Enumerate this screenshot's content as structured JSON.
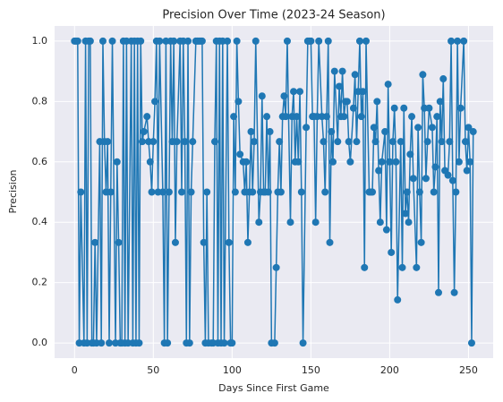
{
  "chart_data": {
    "type": "line",
    "title": "Precision Over Time (2023-24 Season)",
    "x_label": "Days Since First Game",
    "y_label": "Precision",
    "x": [
      0,
      1,
      2,
      3,
      4,
      6,
      7,
      8,
      9,
      10,
      11,
      12,
      13,
      14,
      16,
      17,
      18,
      19,
      20,
      21,
      22,
      23,
      24,
      26,
      27,
      28,
      29,
      30,
      31,
      32,
      33,
      34,
      36,
      37,
      38,
      39,
      40,
      41,
      42,
      43,
      44,
      46,
      47,
      48,
      49,
      50,
      51,
      52,
      53,
      54,
      56,
      57,
      58,
      59,
      60,
      61,
      62,
      63,
      64,
      65,
      67,
      68,
      69,
      70,
      71,
      72,
      73,
      74,
      75,
      77,
      78,
      79,
      80,
      81,
      82,
      83,
      84,
      85,
      87,
      88,
      89,
      90,
      91,
      92,
      93,
      94,
      95,
      97,
      98,
      99,
      100,
      101,
      102,
      103,
      104,
      105,
      107,
      108,
      109,
      110,
      111,
      112,
      113,
      114,
      115,
      117,
      118,
      119,
      120,
      121,
      122,
      123,
      124,
      125,
      127,
      128,
      129,
      130,
      131,
      132,
      133,
      134,
      135,
      137,
      138,
      139,
      140,
      141,
      142,
      143,
      144,
      145,
      147,
      148,
      149,
      150,
      151,
      152,
      153,
      154,
      155,
      157,
      158,
      159,
      160,
      161,
      162,
      163,
      164,
      165,
      167,
      168,
      169,
      170,
      171,
      172,
      173,
      174,
      175,
      177,
      178,
      179,
      180,
      181,
      182,
      183,
      184,
      185,
      187,
      188,
      189,
      190,
      191,
      192,
      193,
      194,
      195,
      197,
      198,
      199,
      200,
      201,
      202,
      203,
      204,
      205,
      207,
      208,
      209,
      210,
      211,
      212,
      213,
      214,
      215,
      217,
      218,
      219,
      220,
      221,
      222,
      223,
      224,
      225,
      227,
      228,
      229,
      230,
      231,
      232,
      233,
      234,
      235,
      237,
      238,
      239,
      240,
      241,
      242,
      243,
      244,
      245,
      247,
      248,
      249,
      250,
      251,
      252,
      253
    ],
    "series": [
      {
        "name": "Precision",
        "color": "#1f77b4",
        "values": [
          1,
          1,
          1,
          0,
          0.5,
          0,
          1,
          0,
          1,
          1,
          0,
          0,
          0.333,
          0,
          0.667,
          0,
          1,
          0.667,
          0.5,
          0.667,
          0,
          0.5,
          1,
          0,
          0.6,
          0.333,
          0,
          0,
          1,
          0,
          1,
          0,
          1,
          0,
          1,
          0,
          1,
          0,
          1,
          0.667,
          0.7,
          0.75,
          0.667,
          0.6,
          0.5,
          0.667,
          0.8,
          1,
          0.5,
          1,
          0.5,
          0,
          1,
          0,
          0.5,
          1,
          0.667,
          1,
          0.333,
          0.667,
          1,
          0.5,
          1,
          0.667,
          0,
          1,
          0,
          0.5,
          0.667,
          1,
          1,
          1,
          1,
          1,
          0.333,
          0,
          0.5,
          0,
          0,
          0,
          0.667,
          1,
          0,
          1,
          0,
          1,
          0,
          1,
          0.333,
          0,
          0,
          0.75,
          0.5,
          1,
          0.8,
          0.625,
          0.6,
          0.5,
          0.6,
          0.333,
          0.5,
          0.7,
          0.5,
          0.667,
          1,
          0.4,
          0.5,
          0.818,
          0.5,
          0.5,
          0.75,
          0.5,
          0.7,
          0,
          0,
          0.25,
          0.5,
          0.667,
          0.5,
          0.75,
          0.818,
          0.75,
          1,
          0.4,
          0.75,
          0.833,
          0.6,
          0.75,
          0.6,
          0.833,
          0.5,
          0,
          0.714,
          1,
          1,
          1,
          0.75,
          0.75,
          0.4,
          0.75,
          1,
          0.75,
          0.667,
          0.5,
          0.75,
          1,
          0.333,
          0.7,
          0.6,
          0.9,
          0.667,
          0.85,
          0.75,
          0.9,
          0.75,
          0.8,
          0.8,
          0.667,
          0.6,
          0.778,
          0.889,
          0.667,
          0.833,
          1,
          0.75,
          0.833,
          0.25,
          1,
          0.5,
          0.5,
          0.5,
          0.714,
          0.667,
          0.8,
          0.571,
          0.4,
          0.6,
          0.7,
          0.375,
          0.857,
          0.6,
          0.3,
          0.667,
          0.778,
          0.6,
          0.143,
          0.667,
          0.25,
          0.778,
          0.429,
          0.5,
          0.4,
          0.625,
          0.75,
          0.545,
          0.25,
          0.714,
          0.5,
          0.333,
          0.889,
          0.778,
          0.545,
          0.667,
          0.778,
          0.714,
          0.5,
          0.583,
          0.75,
          0.167,
          0.8,
          0.667,
          0.875,
          0.571,
          0.556,
          0.667,
          1,
          0.538,
          0.167,
          0.5,
          1,
          0.6,
          0.778,
          1,
          0.667,
          0.571,
          0.714,
          0.6,
          0,
          0.7
        ]
      }
    ],
    "xlim": [
      -12.65,
      265.65
    ],
    "xticks": [
      0,
      50,
      100,
      150,
      200,
      250
    ],
    "ylim": [
      -0.05,
      1.05
    ],
    "yticks": [
      {
        "value": 0,
        "label": "0.0"
      },
      {
        "value": 0.2,
        "label": "0.2"
      },
      {
        "value": 0.4,
        "label": "0.4"
      },
      {
        "value": 0.6,
        "label": "0.6"
      },
      {
        "value": 0.8,
        "label": "0.8"
      },
      {
        "value": 1,
        "label": "1.0"
      }
    ],
    "grid": true,
    "marker": "o"
  }
}
